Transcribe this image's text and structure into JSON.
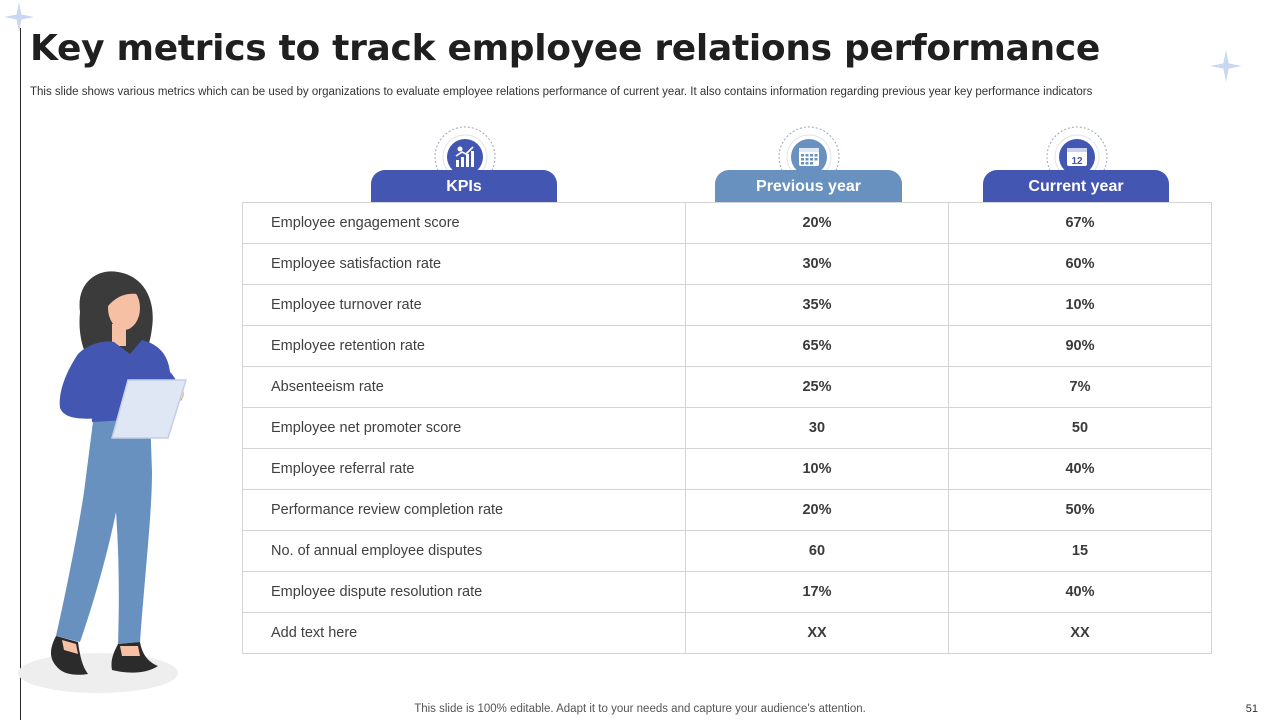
{
  "slide": {
    "title": "Key metrics to track employee relations performance",
    "subtitle": "This slide shows various metrics which can be used by organizations to evaluate employee relations performance of current year.  It also contains information regarding previous year key performance indicators",
    "footer": "This slide is 100% editable. Adapt it to your needs and capture your audience's attention.",
    "page_number": "51"
  },
  "table": {
    "headers": {
      "kpis": "KPIs",
      "previous": "Previous year",
      "current": "Current year"
    },
    "header_icons": {
      "kpis": "growth-chart-icon",
      "previous": "calendar-grid-icon",
      "current": "calendar-12-icon"
    },
    "calendar_day": "12",
    "rows": [
      {
        "kpi": "Employee engagement score",
        "previous": "20%",
        "current": "67%"
      },
      {
        "kpi": "Employee satisfaction rate",
        "previous": "30%",
        "current": "60%"
      },
      {
        "kpi": "Employee turnover rate",
        "previous": "35%",
        "current": "10%"
      },
      {
        "kpi": "Employee retention rate",
        "previous": "65%",
        "current": "90%"
      },
      {
        "kpi": "Absenteeism rate",
        "previous": "25%",
        "current": "7%"
      },
      {
        "kpi": "Employee net promoter score",
        "previous": "30",
        "current": "50"
      },
      {
        "kpi": "Employee referral rate",
        "previous": "10%",
        "current": "40%"
      },
      {
        "kpi": "Performance review completion rate",
        "previous": "20%",
        "current": "50%"
      },
      {
        "kpi": "No. of annual employee disputes",
        "previous": "60",
        "current": "15"
      },
      {
        "kpi": "Employee dispute resolution rate",
        "previous": "17%",
        "current": "40%"
      },
      {
        "kpi": "Add text here",
        "previous": "XX",
        "current": "XX"
      }
    ]
  },
  "colors": {
    "primary_blue": "#4356b1",
    "secondary_blue": "#6891bf",
    "border": "#d4d4d4",
    "sparkle": "#c9d8f1"
  }
}
